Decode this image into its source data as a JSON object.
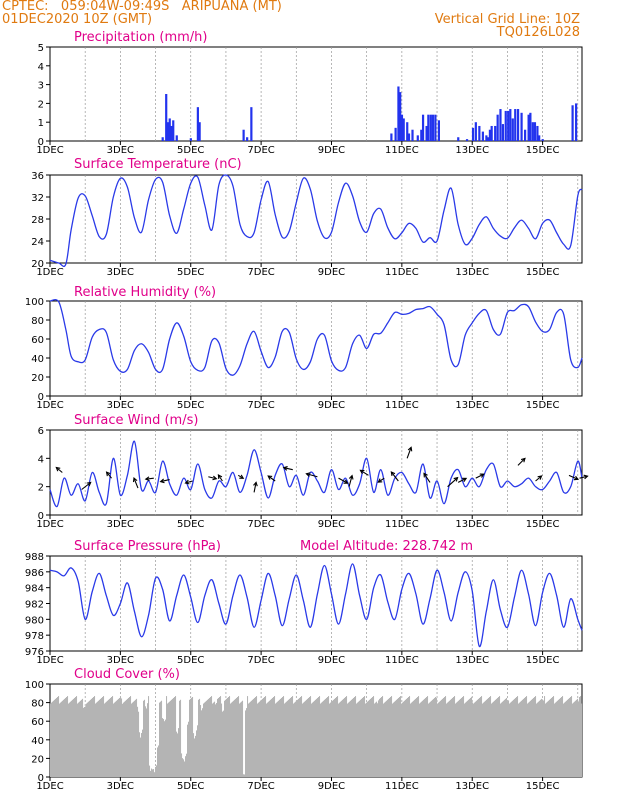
{
  "header": {
    "line1_left": "CPTEC:   059:04W-09:49S   ARIPUANA (MT)",
    "line2_left": "01DEC2020 10Z (GMT)",
    "line2_right": "Vertical Grid Line: 10Z",
    "line3_right": "TQ0126L028",
    "colors": {
      "header": "#e07a10",
      "title": "#e0008a",
      "line": "#2a3ae8",
      "bar": "#2233ee",
      "cloud": "#b4b4b4",
      "arrow": "#000000"
    }
  },
  "x_tick_labels": [
    "1DEC",
    "3DEC",
    "5DEC",
    "7DEC",
    "9DEC",
    "11DEC",
    "13DEC",
    "15DEC"
  ],
  "chart_data": [
    {
      "type": "bar",
      "title": "Precipitation (mm/h)",
      "ylim": [
        0,
        5
      ],
      "yticks": [
        0,
        1,
        2,
        3,
        4,
        5
      ],
      "x_range_days": [
        1.0,
        16.12
      ],
      "bars": [
        [
          4.2,
          0.2
        ],
        [
          4.3,
          2.5
        ],
        [
          4.35,
          1.0
        ],
        [
          4.4,
          1.2
        ],
        [
          4.45,
          0.8
        ],
        [
          4.5,
          1.1
        ],
        [
          4.6,
          0.3
        ],
        [
          5.0,
          0.15
        ],
        [
          5.2,
          1.8
        ],
        [
          5.25,
          1.0
        ],
        [
          6.5,
          0.6
        ],
        [
          6.6,
          0.2
        ],
        [
          6.72,
          1.8
        ],
        [
          10.7,
          0.4
        ],
        [
          10.82,
          0.7
        ],
        [
          10.9,
          2.9
        ],
        [
          10.95,
          2.6
        ],
        [
          11.0,
          1.4
        ],
        [
          11.05,
          1.2
        ],
        [
          11.15,
          1.0
        ],
        [
          11.2,
          0.4
        ],
        [
          11.3,
          0.6
        ],
        [
          11.45,
          0.3
        ],
        [
          11.55,
          0.6
        ],
        [
          11.6,
          1.4
        ],
        [
          11.7,
          0.8
        ],
        [
          11.75,
          1.4
        ],
        [
          11.82,
          1.4
        ],
        [
          11.88,
          1.4
        ],
        [
          11.95,
          1.4
        ],
        [
          12.05,
          1.1
        ],
        [
          12.6,
          0.2
        ],
        [
          12.85,
          0.1
        ],
        [
          13.02,
          0.7
        ],
        [
          13.1,
          1.0
        ],
        [
          13.2,
          0.8
        ],
        [
          13.3,
          0.5
        ],
        [
          13.4,
          0.3
        ],
        [
          13.45,
          0.2
        ],
        [
          13.5,
          0.6
        ],
        [
          13.55,
          0.8
        ],
        [
          13.65,
          0.8
        ],
        [
          13.72,
          1.4
        ],
        [
          13.8,
          1.7
        ],
        [
          13.87,
          0.9
        ],
        [
          13.95,
          1.6
        ],
        [
          14.02,
          1.6
        ],
        [
          14.08,
          1.7
        ],
        [
          14.15,
          1.2
        ],
        [
          14.22,
          1.7
        ],
        [
          14.3,
          1.7
        ],
        [
          14.4,
          1.5
        ],
        [
          14.5,
          0.6
        ],
        [
          14.6,
          1.4
        ],
        [
          14.65,
          1.5
        ],
        [
          14.72,
          1.0
        ],
        [
          14.78,
          1.0
        ],
        [
          14.85,
          0.8
        ],
        [
          14.9,
          0.3
        ],
        [
          15.0,
          0.1
        ],
        [
          15.85,
          1.9
        ],
        [
          15.95,
          2.0
        ]
      ]
    },
    {
      "type": "line",
      "title": "Surface Temperature (nC)",
      "ylim": [
        20,
        36
      ],
      "yticks": [
        20,
        24,
        28,
        32,
        36
      ],
      "x": [
        1.0,
        1.25,
        1.45,
        1.6,
        1.8,
        2.0,
        2.2,
        2.4,
        2.6,
        2.8,
        3.0,
        3.2,
        3.4,
        3.6,
        3.8,
        4.0,
        4.2,
        4.4,
        4.6,
        4.8,
        5.0,
        5.2,
        5.4,
        5.6,
        5.8,
        6.0,
        6.2,
        6.4,
        6.6,
        6.8,
        7.0,
        7.2,
        7.4,
        7.6,
        7.8,
        8.0,
        8.2,
        8.4,
        8.6,
        8.8,
        9.0,
        9.2,
        9.4,
        9.6,
        9.8,
        10.0,
        10.2,
        10.4,
        10.6,
        10.8,
        11.0,
        11.2,
        11.4,
        11.6,
        11.8,
        12.0,
        12.2,
        12.4,
        12.6,
        12.8,
        13.0,
        13.2,
        13.4,
        13.6,
        13.8,
        14.0,
        14.2,
        14.4,
        14.6,
        14.8,
        15.0,
        15.2,
        15.4,
        15.6,
        15.8,
        16.0,
        16.12
      ],
      "y": [
        20.5,
        20.0,
        19.8,
        26.0,
        31.8,
        32.2,
        28.6,
        24.8,
        25.2,
        32.0,
        35.4,
        33.8,
        28.2,
        25.6,
        31.5,
        35.2,
        34.7,
        28.6,
        25.4,
        29.8,
        34.5,
        35.6,
        30.5,
        26.0,
        34.2,
        36.0,
        34.0,
        27.0,
        24.8,
        25.5,
        31.5,
        34.8,
        28.8,
        24.7,
        25.8,
        31.0,
        35.4,
        33.4,
        27.6,
        24.6,
        25.6,
        31.0,
        34.5,
        32.2,
        27.5,
        25.6,
        29.0,
        29.8,
        26.4,
        24.4,
        25.5,
        27.2,
        26.3,
        23.8,
        24.6,
        24.0,
        29.6,
        33.6,
        27.0,
        23.4,
        24.5,
        27.0,
        28.4,
        26.3,
        24.9,
        24.5,
        26.4,
        27.8,
        26.3,
        24.4,
        27.2,
        27.8,
        25.5,
        23.4,
        23.2,
        32.2,
        33.4
      ]
    },
    {
      "type": "line",
      "title": "Relative Humidity (%)",
      "ylim": [
        0,
        100
      ],
      "yticks": [
        0,
        20,
        40,
        60,
        80,
        100
      ],
      "x": [
        1.0,
        1.25,
        1.45,
        1.6,
        1.8,
        2.0,
        2.2,
        2.4,
        2.6,
        2.8,
        3.0,
        3.2,
        3.4,
        3.6,
        3.8,
        4.0,
        4.2,
        4.4,
        4.6,
        4.8,
        5.0,
        5.2,
        5.4,
        5.6,
        5.8,
        6.0,
        6.2,
        6.4,
        6.6,
        6.8,
        7.0,
        7.2,
        7.4,
        7.6,
        7.8,
        8.0,
        8.2,
        8.4,
        8.6,
        8.8,
        9.0,
        9.2,
        9.4,
        9.6,
        9.8,
        10.0,
        10.2,
        10.4,
        10.6,
        10.8,
        11.0,
        11.2,
        11.4,
        11.6,
        11.8,
        12.0,
        12.2,
        12.4,
        12.6,
        12.8,
        13.0,
        13.2,
        13.4,
        13.6,
        13.8,
        14.0,
        14.2,
        14.4,
        14.6,
        14.8,
        15.0,
        15.2,
        15.4,
        15.6,
        15.8,
        16.0,
        16.12
      ],
      "y": [
        100,
        99,
        70,
        42,
        36,
        38,
        62,
        70,
        67,
        38,
        26,
        28,
        48,
        55,
        46,
        28,
        28,
        60,
        77,
        63,
        36,
        27,
        30,
        58,
        56,
        29,
        22,
        32,
        55,
        68,
        47,
        30,
        41,
        68,
        67,
        39,
        28,
        36,
        60,
        64,
        37,
        27,
        30,
        55,
        64,
        50,
        65,
        66,
        77,
        88,
        86,
        87,
        91,
        92,
        94,
        86,
        75,
        38,
        33,
        64,
        77,
        87,
        90,
        70,
        65,
        88,
        90,
        96,
        94,
        78,
        68,
        70,
        88,
        86,
        38,
        30,
        40
      ]
    },
    {
      "type": "line",
      "title": "Surface Wind (m/s)",
      "ylim": [
        0,
        6
      ],
      "yticks": [
        0,
        2,
        4,
        6
      ],
      "x": [
        1.0,
        1.2,
        1.4,
        1.6,
        1.8,
        2.0,
        2.2,
        2.4,
        2.6,
        2.8,
        3.0,
        3.2,
        3.4,
        3.6,
        3.8,
        4.0,
        4.2,
        4.4,
        4.6,
        4.8,
        5.0,
        5.2,
        5.4,
        5.6,
        5.8,
        6.0,
        6.2,
        6.4,
        6.6,
        6.8,
        7.0,
        7.2,
        7.4,
        7.6,
        7.8,
        8.0,
        8.2,
        8.4,
        8.6,
        8.8,
        9.0,
        9.2,
        9.4,
        9.6,
        9.8,
        10.0,
        10.2,
        10.4,
        10.6,
        10.8,
        11.0,
        11.2,
        11.4,
        11.6,
        11.8,
        12.0,
        12.2,
        12.4,
        12.6,
        12.8,
        13.0,
        13.2,
        13.4,
        13.6,
        13.8,
        14.0,
        14.2,
        14.4,
        14.6,
        14.8,
        15.0,
        15.2,
        15.4,
        15.6,
        15.8,
        16.0,
        16.12
      ],
      "y": [
        1.8,
        0.6,
        2.6,
        1.4,
        2.2,
        1.0,
        3.0,
        1.6,
        0.8,
        4.0,
        1.4,
        2.8,
        5.2,
        1.8,
        2.4,
        1.6,
        3.8,
        2.2,
        1.4,
        2.6,
        1.8,
        3.6,
        1.8,
        1.2,
        2.4,
        2.0,
        3.0,
        1.6,
        2.8,
        4.6,
        3.0,
        1.2,
        2.8,
        3.6,
        2.0,
        2.8,
        1.4,
        3.0,
        2.4,
        1.6,
        3.2,
        1.8,
        2.6,
        1.4,
        2.2,
        4.0,
        1.6,
        3.2,
        1.4,
        2.6,
        3.0,
        2.2,
        1.6,
        3.6,
        1.2,
        2.4,
        0.8,
        2.6,
        3.2,
        2.0,
        2.6,
        2.0,
        3.2,
        3.6,
        2.0,
        2.4,
        2.0,
        2.2,
        2.6,
        2.0,
        1.8,
        2.4,
        3.0,
        1.6,
        2.0,
        3.8,
        2.6
      ],
      "arrows": [
        [
          1.35,
          3.0,
          -6,
          -5
        ],
        [
          1.9,
          1.8,
          9,
          -7
        ],
        [
          2.75,
          2.6,
          -5,
          -6
        ],
        [
          3.5,
          1.9,
          -4,
          -10
        ],
        [
          3.95,
          2.6,
          -8,
          1
        ],
        [
          4.4,
          2.5,
          -9,
          2
        ],
        [
          5.05,
          2.4,
          -7,
          2
        ],
        [
          5.5,
          2.7,
          8,
          2
        ],
        [
          5.9,
          2.4,
          -4,
          -6
        ],
        [
          6.35,
          2.8,
          5,
          3
        ],
        [
          6.8,
          1.6,
          2,
          -10
        ],
        [
          7.4,
          2.4,
          -7,
          -5
        ],
        [
          7.9,
          3.2,
          -9,
          -2
        ],
        [
          8.6,
          2.7,
          -11,
          -3
        ],
        [
          9.2,
          2.6,
          9,
          5
        ],
        [
          9.5,
          2.0,
          3,
          -11
        ],
        [
          10.05,
          2.8,
          -8,
          -5
        ],
        [
          10.5,
          2.6,
          -6,
          4
        ],
        [
          10.9,
          2.4,
          -7,
          -9
        ],
        [
          11.15,
          4.0,
          4,
          -11
        ],
        [
          11.8,
          2.3,
          -6,
          -9
        ],
        [
          12.3,
          2.0,
          10,
          -9
        ],
        [
          12.6,
          2.3,
          8,
          -4
        ],
        [
          13.1,
          2.6,
          8,
          -4
        ],
        [
          14.3,
          3.5,
          7,
          -7
        ],
        [
          14.8,
          2.4,
          6,
          -5
        ],
        [
          15.75,
          2.8,
          9,
          4
        ],
        [
          16.05,
          2.6,
          8,
          -2
        ]
      ]
    },
    {
      "type": "line",
      "title": "Surface Pressure (hPa)",
      "annotation": "Model Altitude: 228.742  m",
      "ylim": [
        976,
        988
      ],
      "yticks": [
        976,
        978,
        980,
        982,
        984,
        986,
        988
      ],
      "x": [
        1.0,
        1.2,
        1.4,
        1.6,
        1.8,
        2.0,
        2.2,
        2.4,
        2.6,
        2.8,
        3.0,
        3.2,
        3.4,
        3.6,
        3.8,
        4.0,
        4.2,
        4.4,
        4.6,
        4.8,
        5.0,
        5.2,
        5.4,
        5.6,
        5.8,
        6.0,
        6.2,
        6.4,
        6.6,
        6.8,
        7.0,
        7.2,
        7.4,
        7.6,
        7.8,
        8.0,
        8.2,
        8.4,
        8.6,
        8.8,
        9.0,
        9.2,
        9.4,
        9.6,
        9.8,
        10.0,
        10.2,
        10.4,
        10.6,
        10.8,
        11.0,
        11.2,
        11.4,
        11.6,
        11.8,
        12.0,
        12.2,
        12.4,
        12.6,
        12.8,
        13.0,
        13.2,
        13.4,
        13.6,
        13.8,
        14.0,
        14.2,
        14.4,
        14.6,
        14.8,
        15.0,
        15.2,
        15.4,
        15.6,
        15.8,
        16.0,
        16.12
      ],
      "y": [
        986.2,
        986.0,
        985.5,
        986.5,
        984.8,
        980.0,
        983.5,
        985.8,
        983.0,
        980.5,
        982.0,
        984.6,
        981.0,
        977.8,
        980.5,
        985.2,
        983.8,
        979.8,
        983.0,
        985.6,
        982.8,
        979.6,
        983.0,
        985.0,
        982.0,
        979.4,
        983.0,
        985.6,
        982.8,
        979.0,
        982.4,
        985.8,
        983.0,
        979.2,
        982.6,
        985.6,
        982.4,
        979.0,
        983.2,
        986.8,
        983.2,
        979.4,
        983.2,
        987.0,
        983.0,
        980.0,
        984.0,
        985.6,
        982.2,
        980.0,
        983.8,
        985.8,
        983.2,
        979.4,
        982.6,
        986.2,
        983.4,
        979.8,
        983.4,
        986.0,
        983.6,
        976.6,
        981.0,
        985.0,
        981.2,
        979.0,
        982.8,
        986.2,
        983.2,
        979.2,
        983.4,
        985.8,
        983.0,
        979.0,
        982.6,
        980.0,
        978.6
      ]
    },
    {
      "type": "bar",
      "title": "Cloud Cover (%)",
      "ylim": [
        0,
        100
      ],
      "yticks": [
        0,
        20,
        40,
        60,
        80,
        100
      ],
      "x_range_days": [
        1.0,
        16.12
      ],
      "baseline": 83,
      "dips": [
        [
          1.95,
          72
        ],
        [
          2.0,
          75
        ],
        [
          3.05,
          78
        ],
        [
          3.5,
          70
        ],
        [
          3.56,
          42
        ],
        [
          3.6,
          48
        ],
        [
          3.72,
          72
        ],
        [
          3.85,
          5
        ],
        [
          3.9,
          8
        ],
        [
          3.95,
          4
        ],
        [
          4.0,
          10
        ],
        [
          4.05,
          30
        ],
        [
          4.2,
          60
        ],
        [
          4.25,
          58
        ],
        [
          4.6,
          45
        ],
        [
          4.75,
          20
        ],
        [
          4.8,
          15
        ],
        [
          4.85,
          22
        ],
        [
          4.9,
          55
        ],
        [
          5.1,
          40
        ],
        [
          5.15,
          50
        ],
        [
          5.3,
          70
        ],
        [
          5.7,
          76
        ],
        [
          5.9,
          68
        ],
        [
          6.5,
          0
        ],
        [
          6.55,
          70
        ],
        [
          10.3,
          78
        ],
        [
          11.0,
          80
        ],
        [
          12.0,
          79
        ],
        [
          13.0,
          79
        ],
        [
          14.0,
          79
        ],
        [
          15.0,
          80
        ],
        [
          16.0,
          80
        ]
      ]
    }
  ]
}
